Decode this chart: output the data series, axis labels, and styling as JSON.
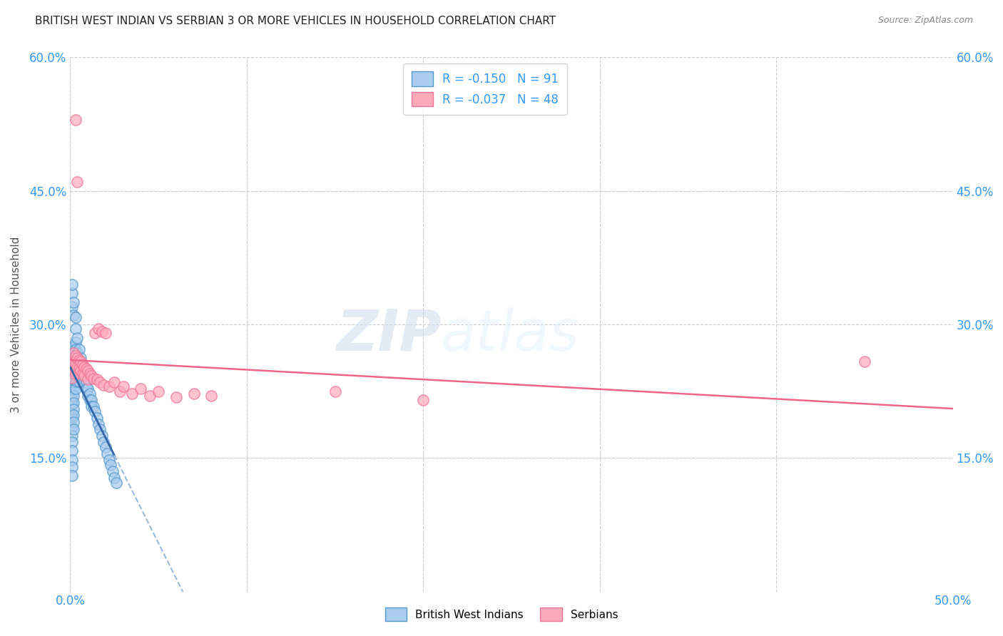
{
  "title": "BRITISH WEST INDIAN VS SERBIAN 3 OR MORE VEHICLES IN HOUSEHOLD CORRELATION CHART",
  "source": "Source: ZipAtlas.com",
  "ylabel": "3 or more Vehicles in Household",
  "watermark_zip": "ZIP",
  "watermark_atlas": "atlas",
  "xlim": [
    0.0,
    0.5
  ],
  "ylim": [
    0.0,
    0.6
  ],
  "xtick_positions": [
    0.0,
    0.1,
    0.2,
    0.3,
    0.4,
    0.5
  ],
  "xtick_labels": [
    "0.0%",
    "",
    "",
    "",
    "",
    "50.0%"
  ],
  "ytick_positions": [
    0.0,
    0.15,
    0.3,
    0.45,
    0.6
  ],
  "ytick_labels_left": [
    "",
    "15.0%",
    "30.0%",
    "45.0%",
    "60.0%"
  ],
  "ytick_labels_right": [
    "",
    "15.0%",
    "30.0%",
    "45.0%",
    "60.0%"
  ],
  "legend_label1": "British West Indians",
  "legend_label2": "Serbians",
  "legend_text1": "R = -0.150   N = 91",
  "legend_text2": "R = -0.037   N = 48",
  "color_bwi_face": "#aaccee",
  "color_bwi_edge": "#5599cc",
  "color_serbian_face": "#ffaabb",
  "color_serbian_edge": "#ee7799",
  "color_bwi_trendline": "#3366aa",
  "color_serbian_trendline": "#ee6688",
  "color_bwi_trendline_ext": "#99bbdd",
  "title_color": "#222222",
  "source_color": "#888888",
  "axis_color": "#3399ff",
  "grid_color": "#cccccc",
  "background_color": "#ffffff",
  "bwi_x": [
    0.001,
    0.001,
    0.001,
    0.001,
    0.001,
    0.001,
    0.001,
    0.001,
    0.001,
    0.001,
    0.001,
    0.001,
    0.001,
    0.001,
    0.001,
    0.001,
    0.001,
    0.001,
    0.001,
    0.001,
    0.002,
    0.002,
    0.002,
    0.002,
    0.002,
    0.002,
    0.002,
    0.002,
    0.002,
    0.002,
    0.002,
    0.002,
    0.002,
    0.002,
    0.003,
    0.003,
    0.003,
    0.003,
    0.003,
    0.003,
    0.003,
    0.003,
    0.004,
    0.004,
    0.004,
    0.004,
    0.004,
    0.005,
    0.005,
    0.005,
    0.005,
    0.006,
    0.006,
    0.006,
    0.007,
    0.007,
    0.008,
    0.008,
    0.009,
    0.009,
    0.01,
    0.01,
    0.011,
    0.011,
    0.012,
    0.012,
    0.013,
    0.014,
    0.015,
    0.016,
    0.017,
    0.018,
    0.019,
    0.02,
    0.021,
    0.022,
    0.023,
    0.024,
    0.025,
    0.026,
    0.001,
    0.001,
    0.001,
    0.002,
    0.002,
    0.003,
    0.003,
    0.004,
    0.005,
    0.006,
    0.007
  ],
  "bwi_y": [
    0.27,
    0.265,
    0.258,
    0.25,
    0.245,
    0.24,
    0.235,
    0.228,
    0.222,
    0.215,
    0.21,
    0.2,
    0.195,
    0.185,
    0.175,
    0.168,
    0.158,
    0.148,
    0.14,
    0.13,
    0.275,
    0.268,
    0.262,
    0.255,
    0.248,
    0.242,
    0.235,
    0.228,
    0.22,
    0.212,
    0.205,
    0.198,
    0.19,
    0.182,
    0.28,
    0.272,
    0.265,
    0.258,
    0.25,
    0.242,
    0.235,
    0.228,
    0.268,
    0.26,
    0.252,
    0.244,
    0.236,
    0.26,
    0.252,
    0.244,
    0.236,
    0.255,
    0.248,
    0.24,
    0.248,
    0.24,
    0.242,
    0.235,
    0.235,
    0.228,
    0.228,
    0.22,
    0.222,
    0.215,
    0.215,
    0.208,
    0.208,
    0.202,
    0.195,
    0.188,
    0.182,
    0.175,
    0.168,
    0.162,
    0.155,
    0.148,
    0.142,
    0.135,
    0.128,
    0.122,
    0.335,
    0.345,
    0.32,
    0.31,
    0.325,
    0.295,
    0.308,
    0.285,
    0.272,
    0.262,
    0.252
  ],
  "serbian_x": [
    0.001,
    0.001,
    0.001,
    0.002,
    0.002,
    0.002,
    0.003,
    0.003,
    0.003,
    0.004,
    0.004,
    0.005,
    0.005,
    0.006,
    0.006,
    0.007,
    0.007,
    0.008,
    0.008,
    0.009,
    0.01,
    0.01,
    0.011,
    0.012,
    0.013,
    0.014,
    0.015,
    0.016,
    0.017,
    0.018,
    0.019,
    0.02,
    0.022,
    0.025,
    0.028,
    0.03,
    0.035,
    0.04,
    0.045,
    0.05,
    0.06,
    0.07,
    0.08,
    0.15,
    0.2,
    0.45,
    0.003,
    0.004
  ],
  "serbian_y": [
    0.26,
    0.25,
    0.24,
    0.268,
    0.258,
    0.248,
    0.265,
    0.255,
    0.245,
    0.262,
    0.252,
    0.26,
    0.25,
    0.258,
    0.248,
    0.255,
    0.245,
    0.252,
    0.242,
    0.25,
    0.248,
    0.238,
    0.245,
    0.242,
    0.239,
    0.29,
    0.238,
    0.295,
    0.235,
    0.292,
    0.232,
    0.29,
    0.23,
    0.235,
    0.225,
    0.23,
    0.222,
    0.228,
    0.22,
    0.225,
    0.218,
    0.222,
    0.22,
    0.225,
    0.215,
    0.258,
    0.53,
    0.46
  ]
}
